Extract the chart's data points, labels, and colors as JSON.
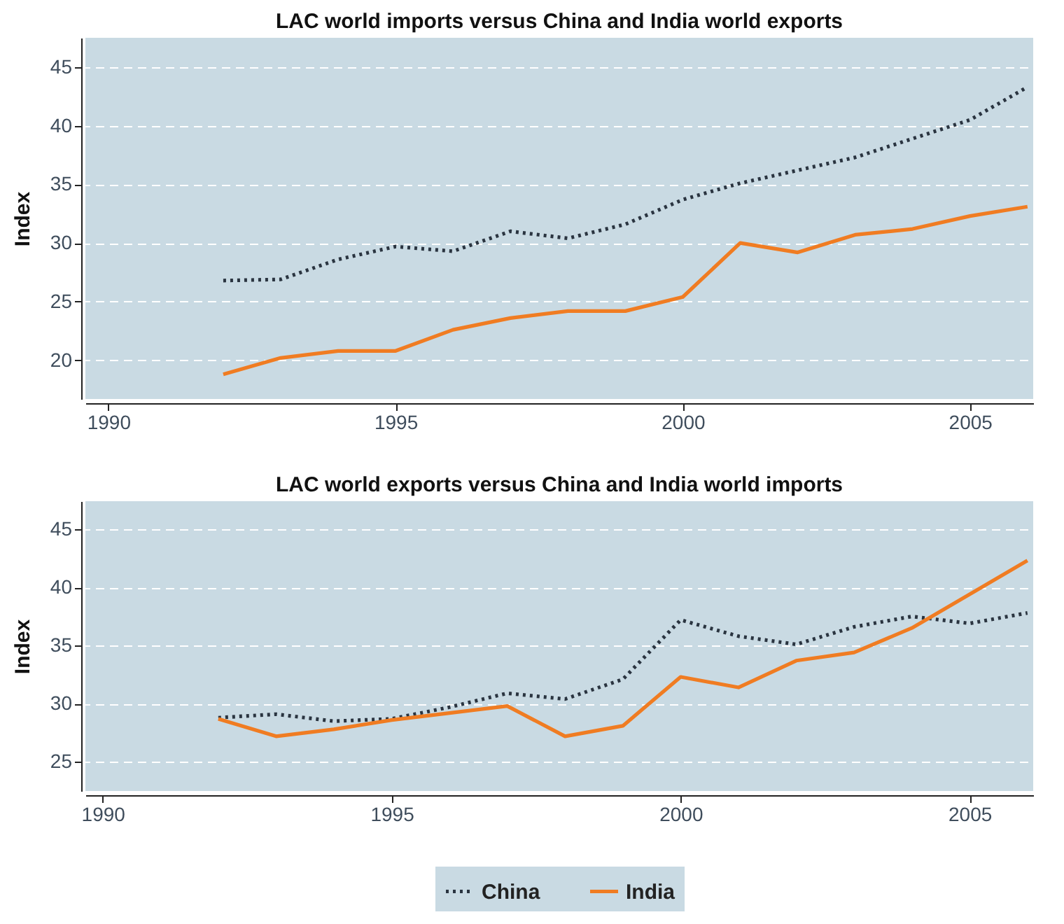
{
  "chart_data": [
    {
      "type": "line",
      "title": "LAC world imports versus China and India world exports",
      "ylabel": "Index",
      "x": [
        1992,
        1993,
        1994,
        1995,
        1996,
        1997,
        1998,
        1999,
        2000,
        2001,
        2002,
        2003,
        2004,
        2005,
        2006
      ],
      "xlim": [
        1989.6,
        2006.1
      ],
      "xticks": [
        1990,
        1995,
        2000,
        2005
      ],
      "ylim": [
        16.7,
        47.5
      ],
      "yticks": [
        20,
        25,
        30,
        35,
        40,
        45
      ],
      "grid": "y",
      "legend": "bottom",
      "marker": "none",
      "series": [
        {
          "name": "China",
          "color": "#2a3440",
          "line_style": "dotted",
          "values": [
            26.8,
            26.9,
            28.6,
            29.7,
            29.3,
            31.0,
            30.4,
            31.6,
            33.7,
            35.1,
            36.2,
            37.3,
            38.9,
            40.5,
            43.3
          ]
        },
        {
          "name": "India",
          "color": "#f07c22",
          "line_style": "solid",
          "values": [
            18.8,
            20.2,
            20.8,
            20.8,
            22.6,
            23.6,
            24.2,
            24.2,
            25.4,
            30.0,
            29.2,
            30.7,
            31.2,
            32.3,
            33.1
          ]
        }
      ]
    },
    {
      "type": "line",
      "title": "LAC world exports versus China and India world imports",
      "ylabel": "Index",
      "x": [
        1992,
        1993,
        1994,
        1995,
        1996,
        1997,
        1998,
        1999,
        2000,
        2001,
        2002,
        2003,
        2004,
        2005,
        2006
      ],
      "xlim": [
        1989.7,
        2006.1
      ],
      "xticks": [
        1990,
        1995,
        2000,
        2005
      ],
      "ylim": [
        22.5,
        47.4
      ],
      "yticks": [
        25,
        30,
        35,
        40,
        45
      ],
      "grid": "y",
      "legend": "bottom",
      "marker": "none",
      "series": [
        {
          "name": "China",
          "color": "#2a3440",
          "line_style": "dotted",
          "values": [
            28.8,
            29.1,
            28.5,
            28.7,
            29.7,
            30.9,
            30.4,
            32.1,
            37.2,
            35.8,
            35.1,
            36.6,
            37.5,
            36.9,
            37.8
          ]
        },
        {
          "name": "India",
          "color": "#f07c22",
          "line_style": "solid",
          "values": [
            28.7,
            27.2,
            27.8,
            28.6,
            29.2,
            29.8,
            27.2,
            28.1,
            32.3,
            31.4,
            33.7,
            34.4,
            36.5,
            39.4,
            42.3
          ]
        }
      ]
    }
  ]
}
